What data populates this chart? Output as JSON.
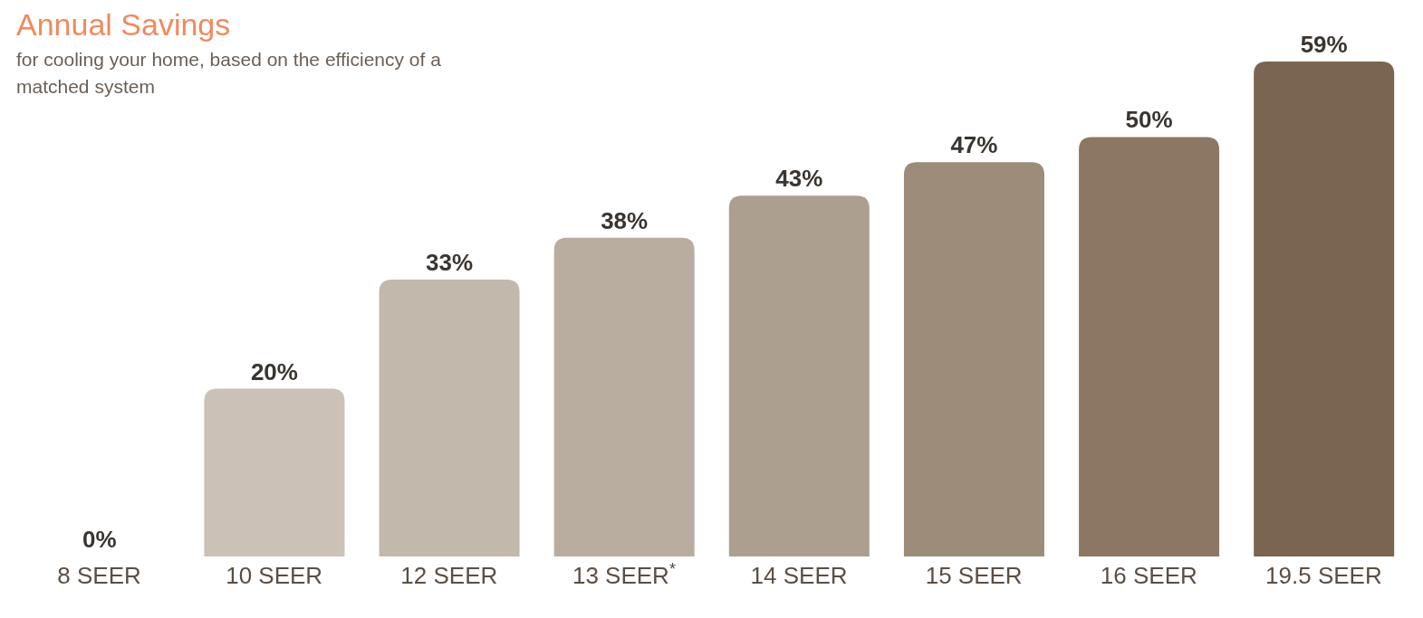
{
  "chart_data": {
    "type": "bar",
    "title": "Annual Savings",
    "subtitle": "for cooling your home, based on the efficiency of a matched system",
    "categories": [
      "8 SEER",
      "10 SEER",
      "12 SEER",
      "13 SEER$^{*}$",
      "14 SEER",
      "15 SEER",
      "16 SEER",
      "19.5 SEER"
    ],
    "values": [
      0,
      20,
      33,
      38,
      43,
      47,
      50,
      59
    ],
    "colors": [
      "#e6e0da",
      "#cbc1b6",
      "#c3b8ac",
      "#b9ada0",
      "#ad9f90",
      "#9d8c7a",
      "#8b7763",
      "#7a6550"
    ],
    "value_labels": [
      "0%",
      "20%",
      "33%",
      "38%",
      "43%",
      "47%",
      "50%",
      "59%"
    ],
    "grid": false,
    "legend": false
  }
}
